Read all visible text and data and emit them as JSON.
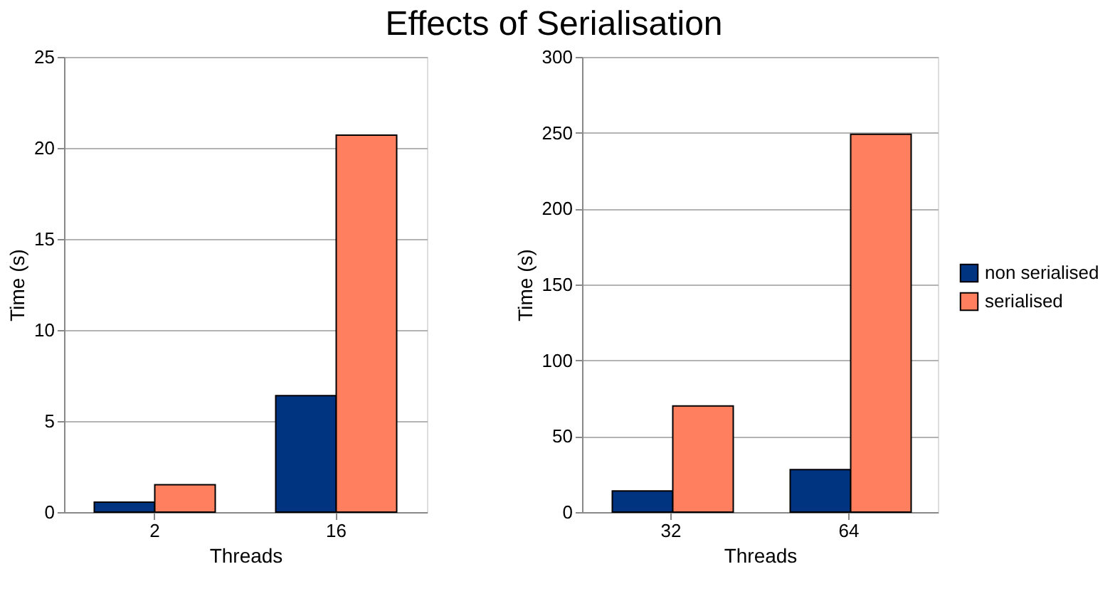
{
  "chart_data": [
    {
      "type": "bar",
      "title": "Effects of Serialisation",
      "categories": [
        "2",
        "16"
      ],
      "xlabel": "Threads",
      "ylabel": "Time (s)",
      "ylim": [
        0,
        25
      ],
      "yticks": [
        0,
        5,
        10,
        15,
        20,
        25
      ],
      "grid": "y",
      "legend": false,
      "series": [
        {
          "color": "#003380",
          "values": [
            0.55,
            6.4
          ]
        },
        {
          "color": "#ff7f5f",
          "values": [
            1.5,
            20.7
          ]
        }
      ]
    },
    {
      "type": "bar",
      "categories": [
        "32",
        "64"
      ],
      "xlabel": "Threads",
      "ylabel": "Time (s)",
      "ylim": [
        0,
        300
      ],
      "yticks": [
        0,
        50,
        100,
        150,
        200,
        250,
        300
      ],
      "grid": "y",
      "legend": "right",
      "series": [
        {
          "name": "non serialised",
          "color": "#003380",
          "values": [
            14,
            28
          ]
        },
        {
          "name": "serialised",
          "color": "#ff7f5f",
          "values": [
            70,
            249
          ]
        }
      ]
    }
  ]
}
